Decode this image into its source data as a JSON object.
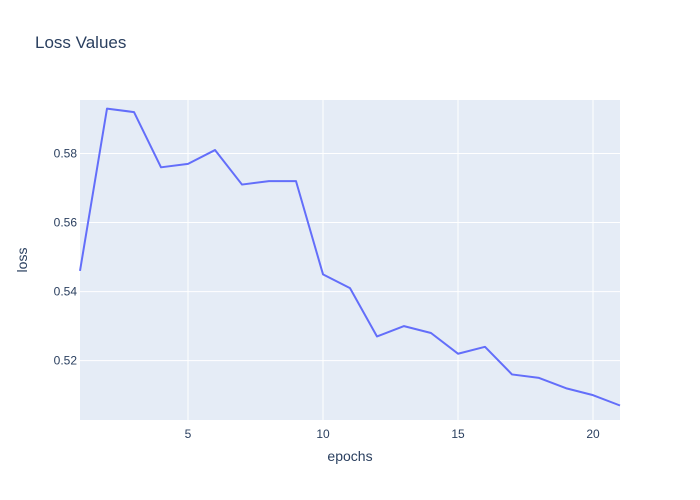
{
  "chart_data": {
    "type": "line",
    "title": "Loss Values",
    "xlabel": "epochs",
    "ylabel": "loss",
    "xlim": [
      1,
      21
    ],
    "ylim": [
      0.5028,
      0.5955
    ],
    "x_ticks": [
      5,
      10,
      15,
      20
    ],
    "x_tick_labels": [
      "5",
      "10",
      "15",
      "20"
    ],
    "y_ticks": [
      0.52,
      0.54,
      0.56,
      0.58
    ],
    "y_tick_labels": [
      "0.52",
      "0.54",
      "0.56",
      "0.58"
    ],
    "grid": true,
    "colors": {
      "line": "#636efa",
      "plot_bg": "#e5ecf6",
      "grid": "#ffffff",
      "text": "#2a3f5f"
    },
    "series": [
      {
        "x": [
          1,
          2,
          3,
          4,
          5,
          6,
          7,
          8,
          9,
          10,
          11,
          12,
          13,
          14,
          15,
          16,
          17,
          18,
          19,
          20,
          21
        ],
        "values": [
          0.546,
          0.593,
          0.592,
          0.576,
          0.577,
          0.581,
          0.571,
          0.572,
          0.572,
          0.545,
          0.541,
          0.527,
          0.53,
          0.528,
          0.522,
          0.524,
          0.516,
          0.515,
          0.512,
          0.51,
          0.507
        ]
      }
    ]
  }
}
